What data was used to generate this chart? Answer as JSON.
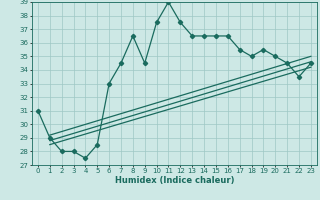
{
  "title": "",
  "xlabel": "Humidex (Indice chaleur)",
  "ylabel": "",
  "bg_color": "#cde8e5",
  "line_color": "#1a6b5e",
  "ylim": [
    27,
    39
  ],
  "xlim": [
    -0.5,
    23.5
  ],
  "yticks": [
    27,
    28,
    29,
    30,
    31,
    32,
    33,
    34,
    35,
    36,
    37,
    38,
    39
  ],
  "xticks": [
    0,
    1,
    2,
    3,
    4,
    5,
    6,
    7,
    8,
    9,
    10,
    11,
    12,
    13,
    14,
    15,
    16,
    17,
    18,
    19,
    20,
    21,
    22,
    23
  ],
  "series1_x": [
    0,
    1,
    2,
    3,
    4,
    5,
    6,
    7,
    8,
    9,
    10,
    11,
    12,
    13,
    14,
    15,
    16,
    17,
    18,
    19,
    20,
    21,
    22,
    23
  ],
  "series1_y": [
    31,
    29,
    28,
    28,
    27.5,
    28.5,
    33,
    34.5,
    36.5,
    34.5,
    37.5,
    39,
    37.5,
    36.5,
    36.5,
    36.5,
    36.5,
    35.5,
    35,
    35.5,
    35,
    34.5,
    33.5,
    34.5
  ],
  "series2_x": [
    1,
    23
  ],
  "series2_y": [
    28.5,
    34.2
  ],
  "series3_x": [
    1,
    23
  ],
  "series3_y": [
    28.8,
    34.6
  ],
  "series4_x": [
    1,
    23
  ],
  "series4_y": [
    29.2,
    35.0
  ],
  "marker": "D",
  "markersize": 2.2,
  "linewidth": 0.9,
  "grid_color": "#9ec8c4",
  "label_fontsize": 6.0,
  "tick_fontsize": 5.0
}
